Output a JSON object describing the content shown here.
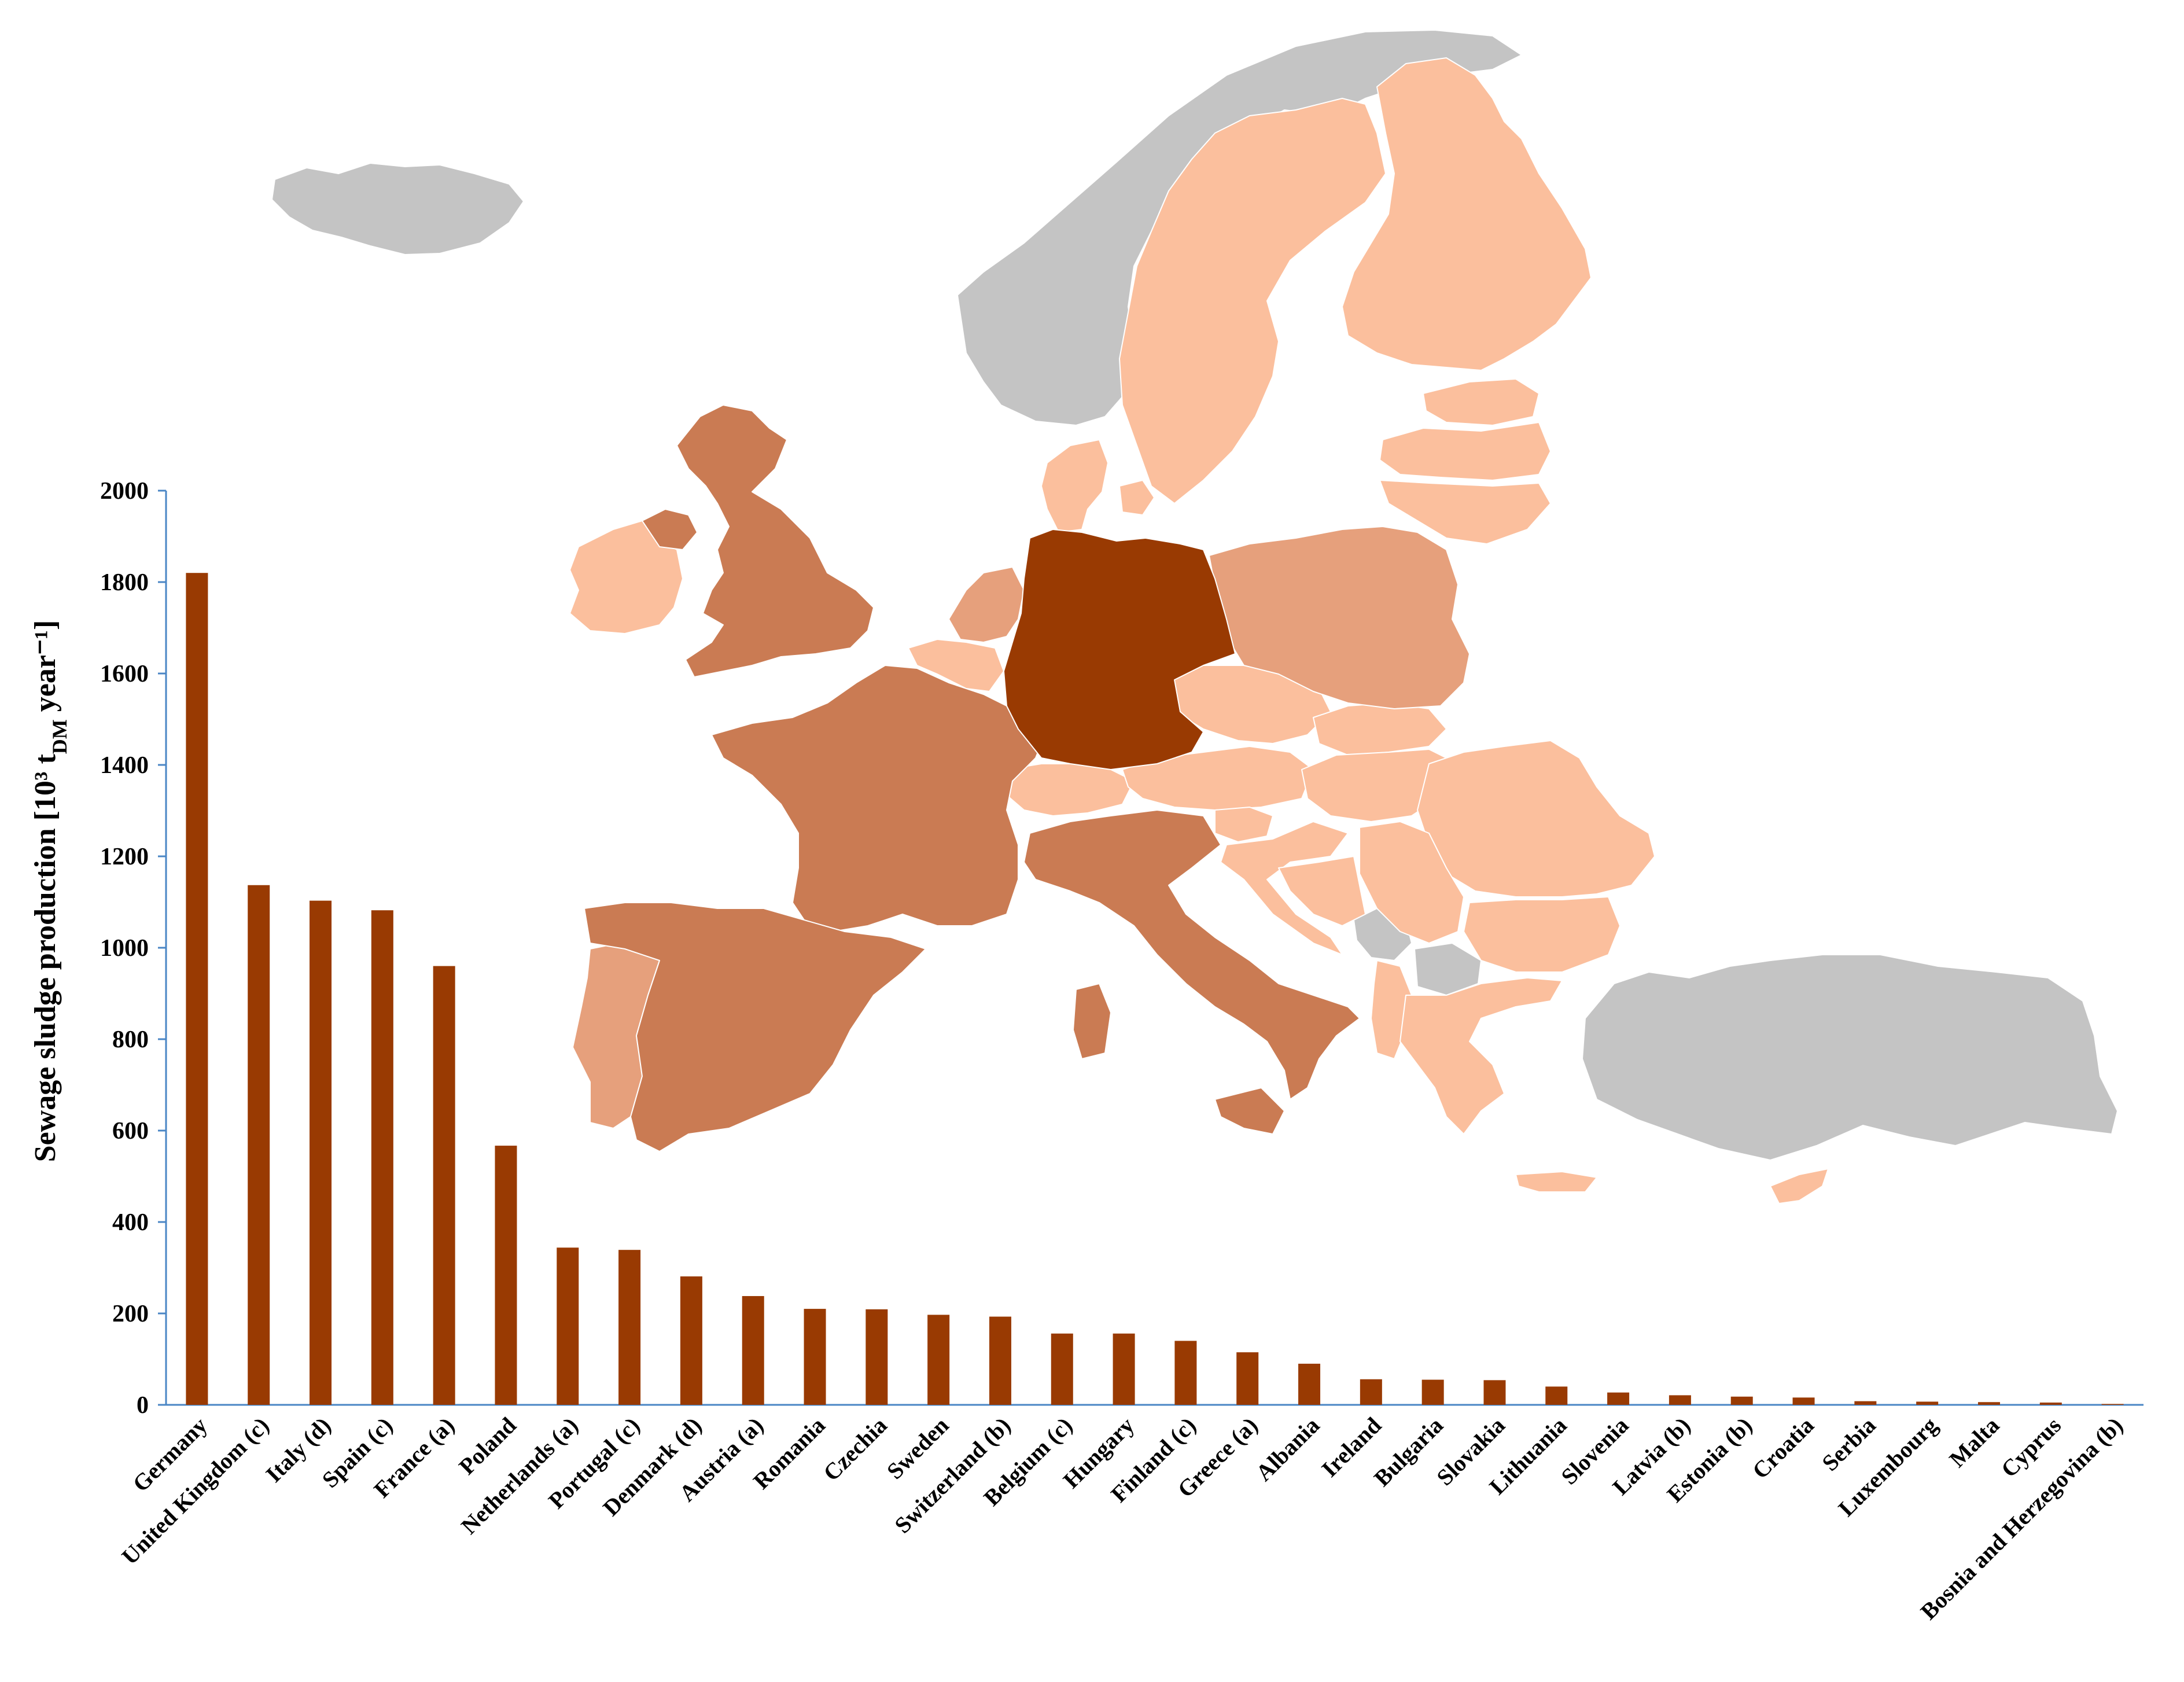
{
  "colors": {
    "bar": "#993a02",
    "axis": "#4a86c5",
    "map_no_data": "#c4c4c4",
    "map_scale": [
      "#fbbf9d",
      "#e6a07c",
      "#ca7b53",
      "#993a02"
    ]
  },
  "chart_data": {
    "type": "bar",
    "ylabel": "Sewage sludge production [10³ t",
    "ylabel_sub": "DM",
    "ylabel_tail": " year⁻¹]",
    "ylim": [
      0,
      2000
    ],
    "yticks": [
      0,
      200,
      400,
      600,
      800,
      1000,
      1200,
      1400,
      1600,
      1800,
      2000
    ],
    "grid": false,
    "categories": [
      "Germany",
      "United Kingdom (c)",
      "Italy (d)",
      "Spain (c)",
      "France (a)",
      "Poland",
      "Netherlands (a)",
      "Portugal (c)",
      "Denmark (d)",
      "Austria (a)",
      "Romania",
      "Czechia",
      "Sweden",
      "Switzerland (b)",
      "Belgium (c)",
      "Hungary",
      "Finland (c)",
      "Greece (a)",
      "Albania",
      "Ireland",
      "Bulgaria",
      "Slovakia",
      "Lithuania",
      "Slovenia",
      "Latvia (b)",
      "Estonia (b)",
      "Croatia",
      "Serbia",
      "Luxembourg",
      "Malta",
      "Cyprus",
      "Bosnia and Herzegovina (b)"
    ],
    "values": [
      1820,
      1137,
      1103,
      1082,
      960,
      567,
      344,
      339,
      281,
      238,
      210,
      209,
      197,
      193,
      156,
      156,
      140,
      115,
      90,
      56,
      55,
      54,
      40,
      27,
      21,
      18,
      16,
      8,
      7,
      6,
      5,
      2
    ]
  },
  "map": {
    "regions": [
      {
        "name": "Germany",
        "tone": 3
      },
      {
        "name": "United Kingdom",
        "tone": 2
      },
      {
        "name": "France",
        "tone": 2
      },
      {
        "name": "Spain",
        "tone": 2
      },
      {
        "name": "Italy",
        "tone": 2
      },
      {
        "name": "Poland",
        "tone": 1
      },
      {
        "name": "Netherlands",
        "tone": 1
      },
      {
        "name": "Portugal",
        "tone": 1
      },
      {
        "name": "Denmark",
        "tone": 0
      },
      {
        "name": "Ireland",
        "tone": 0
      },
      {
        "name": "Belgium",
        "tone": 0
      },
      {
        "name": "Switzerland",
        "tone": 0
      },
      {
        "name": "Austria",
        "tone": 0
      },
      {
        "name": "Czechia",
        "tone": 0
      },
      {
        "name": "Slovakia",
        "tone": 0
      },
      {
        "name": "Hungary",
        "tone": 0
      },
      {
        "name": "Romania",
        "tone": 0
      },
      {
        "name": "Bulgaria",
        "tone": 0
      },
      {
        "name": "Greece",
        "tone": 0
      },
      {
        "name": "Albania",
        "tone": 0
      },
      {
        "name": "Slovenia",
        "tone": 0
      },
      {
        "name": "Croatia",
        "tone": 0
      },
      {
        "name": "Bosnia and Herzegovina",
        "tone": 0
      },
      {
        "name": "Serbia",
        "tone": 0
      },
      {
        "name": "Sweden",
        "tone": 0
      },
      {
        "name": "Finland",
        "tone": 0
      },
      {
        "name": "Estonia",
        "tone": 0
      },
      {
        "name": "Latvia",
        "tone": 0
      },
      {
        "name": "Lithuania",
        "tone": 0
      },
      {
        "name": "Cyprus",
        "tone": 0
      },
      {
        "name": "Iceland",
        "tone": -1
      },
      {
        "name": "Norway",
        "tone": -1
      },
      {
        "name": "Turkey",
        "tone": -1
      },
      {
        "name": "Montenegro",
        "tone": -1
      },
      {
        "name": "North Macedonia",
        "tone": -1
      },
      {
        "name": "Northern Ireland",
        "tone": 2
      }
    ]
  }
}
